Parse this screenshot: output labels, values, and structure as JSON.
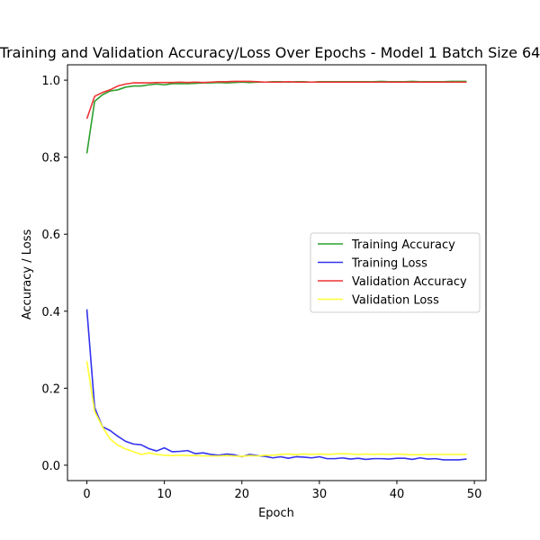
{
  "chart_data": {
    "type": "line",
    "title": "Training and Validation Accuracy/Loss Over Epochs - Model 1 Batch Size 64",
    "xlabel": "Epoch",
    "ylabel": "Accuracy / Loss",
    "xlim": [
      -2.5,
      51.5
    ],
    "ylim": [
      -0.04,
      1.04
    ],
    "xticks": [
      0,
      10,
      20,
      30,
      40,
      50
    ],
    "xtick_labels": [
      "0",
      "10",
      "20",
      "30",
      "40",
      "50"
    ],
    "yticks": [
      0.0,
      0.2,
      0.4,
      0.6,
      0.8,
      1.0
    ],
    "ytick_labels": [
      "0.0",
      "0.2",
      "0.4",
      "0.6",
      "0.8",
      "1.0"
    ],
    "grid": false,
    "legend_position": "center-right",
    "x": [
      0,
      1,
      2,
      3,
      4,
      5,
      6,
      7,
      8,
      9,
      10,
      11,
      12,
      13,
      14,
      15,
      16,
      17,
      18,
      19,
      20,
      21,
      22,
      23,
      24,
      25,
      26,
      27,
      28,
      29,
      30,
      31,
      32,
      33,
      34,
      35,
      36,
      37,
      38,
      39,
      40,
      41,
      42,
      43,
      44,
      45,
      46,
      47,
      48,
      49
    ],
    "series": [
      {
        "name": "Training Accuracy",
        "color": "#2ca02c",
        "values": [
          0.81,
          0.945,
          0.962,
          0.972,
          0.975,
          0.982,
          0.985,
          0.985,
          0.988,
          0.99,
          0.988,
          0.991,
          0.991,
          0.991,
          0.992,
          0.993,
          0.993,
          0.994,
          0.993,
          0.994,
          0.995,
          0.994,
          0.995,
          0.995,
          0.996,
          0.996,
          0.995,
          0.996,
          0.996,
          0.995,
          0.996,
          0.996,
          0.996,
          0.996,
          0.996,
          0.996,
          0.996,
          0.996,
          0.997,
          0.996,
          0.996,
          0.996,
          0.997,
          0.996,
          0.996,
          0.996,
          0.996,
          0.997,
          0.997,
          0.997
        ]
      },
      {
        "name": "Training Loss",
        "color": "#3333ee",
        "values": [
          0.405,
          0.15,
          0.1,
          0.09,
          0.075,
          0.062,
          0.055,
          0.053,
          0.043,
          0.037,
          0.045,
          0.035,
          0.036,
          0.038,
          0.03,
          0.032,
          0.028,
          0.026,
          0.029,
          0.027,
          0.022,
          0.028,
          0.025,
          0.023,
          0.019,
          0.022,
          0.018,
          0.022,
          0.021,
          0.019,
          0.022,
          0.017,
          0.017,
          0.019,
          0.016,
          0.018,
          0.015,
          0.017,
          0.017,
          0.016,
          0.018,
          0.018,
          0.015,
          0.019,
          0.016,
          0.017,
          0.014,
          0.014,
          0.014,
          0.016
        ]
      },
      {
        "name": "Validation Accuracy",
        "color": "#ee3333",
        "values": [
          0.9,
          0.958,
          0.968,
          0.975,
          0.985,
          0.99,
          0.993,
          0.993,
          0.993,
          0.994,
          0.994,
          0.994,
          0.995,
          0.994,
          0.995,
          0.994,
          0.995,
          0.996,
          0.996,
          0.997,
          0.997,
          0.997,
          0.996,
          0.995,
          0.995,
          0.995,
          0.996,
          0.995,
          0.995,
          0.995,
          0.995,
          0.995,
          0.995,
          0.995,
          0.995,
          0.995,
          0.995,
          0.995,
          0.995,
          0.995,
          0.995,
          0.995,
          0.995,
          0.995,
          0.995,
          0.995,
          0.995,
          0.995,
          0.995,
          0.995
        ]
      },
      {
        "name": "Validation Loss",
        "color": "#ffff33",
        "values": [
          0.27,
          0.14,
          0.1,
          0.068,
          0.052,
          0.042,
          0.035,
          0.028,
          0.032,
          0.028,
          0.026,
          0.025,
          0.026,
          0.025,
          0.025,
          0.024,
          0.024,
          0.024,
          0.025,
          0.024,
          0.023,
          0.025,
          0.024,
          0.026,
          0.026,
          0.028,
          0.029,
          0.027,
          0.029,
          0.028,
          0.029,
          0.028,
          0.029,
          0.03,
          0.029,
          0.028,
          0.029,
          0.028,
          0.029,
          0.028,
          0.029,
          0.028,
          0.027,
          0.027,
          0.028,
          0.028,
          0.028,
          0.028,
          0.028,
          0.028
        ]
      }
    ]
  }
}
